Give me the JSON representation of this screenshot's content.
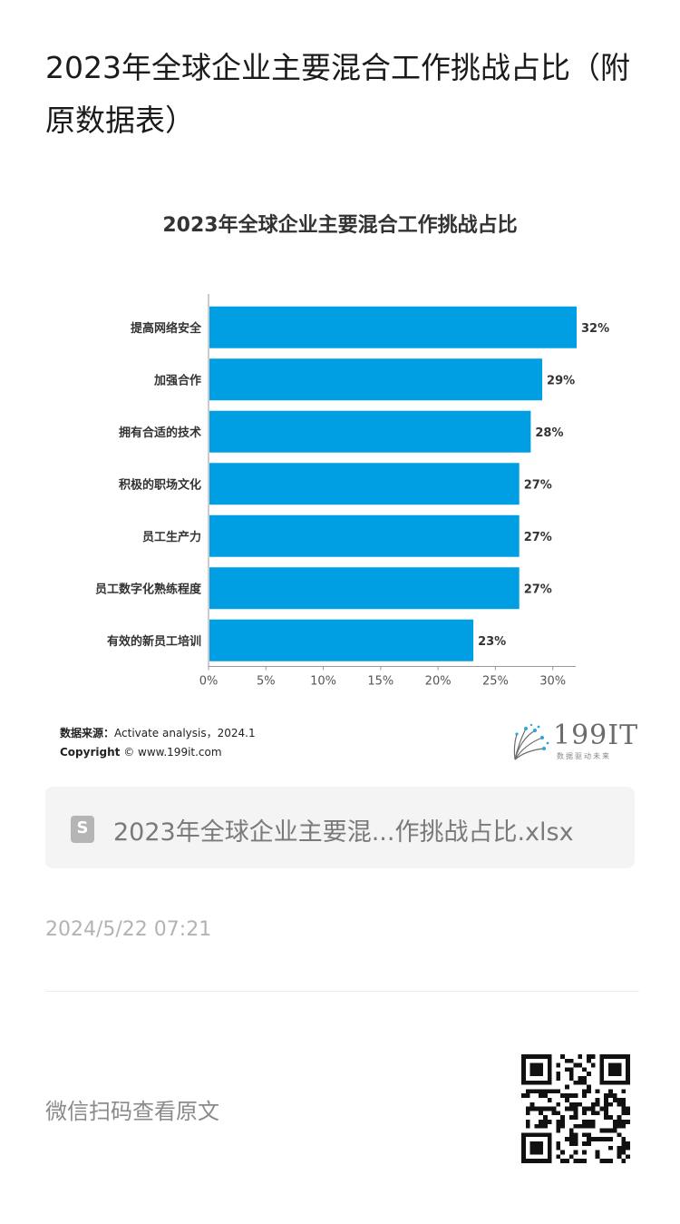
{
  "page": {
    "title": "2023年全球企业主要混合工作挑战占比（附原数据表）"
  },
  "chart_data": {
    "type": "bar",
    "orientation": "horizontal",
    "title": "2023年全球企业主要混合工作挑战占比",
    "categories": [
      "提高网络安全",
      "加强合作",
      "拥有合适的技术",
      "积极的职场文化",
      "员工生产力",
      "员工数字化熟练程度",
      "有效的新员工培训"
    ],
    "values": [
      32,
      29,
      28,
      27,
      27,
      27,
      23
    ],
    "value_labels": [
      "32%",
      "29%",
      "28%",
      "27%",
      "27%",
      "27%",
      "23%"
    ],
    "xlim": [
      0,
      32
    ],
    "x_ticks": [
      "0%",
      "5%",
      "10%",
      "15%",
      "20%",
      "25%",
      "30%"
    ],
    "x_tick_values": [
      0,
      5,
      10,
      15,
      20,
      25,
      30
    ],
    "grid": false,
    "bar_color": "#009fe3"
  },
  "source": {
    "label": "数据来源：",
    "text": "Activate analysis，2024.1",
    "copyright_label": "Copyright",
    "copyright_text": "© www.199it.com"
  },
  "logo": {
    "text": "199IT",
    "subtitle": "数据驱动未来"
  },
  "attachment": {
    "icon": "spreadsheet-file-icon",
    "icon_letter": "S",
    "filename": "2023年全球企业主要混...作挑战占比.xlsx"
  },
  "meta": {
    "timestamp": "2024/5/22 07:21"
  },
  "footer": {
    "qr_label": "微信扫码查看原文",
    "qr_icon": "qr-code-icon"
  }
}
